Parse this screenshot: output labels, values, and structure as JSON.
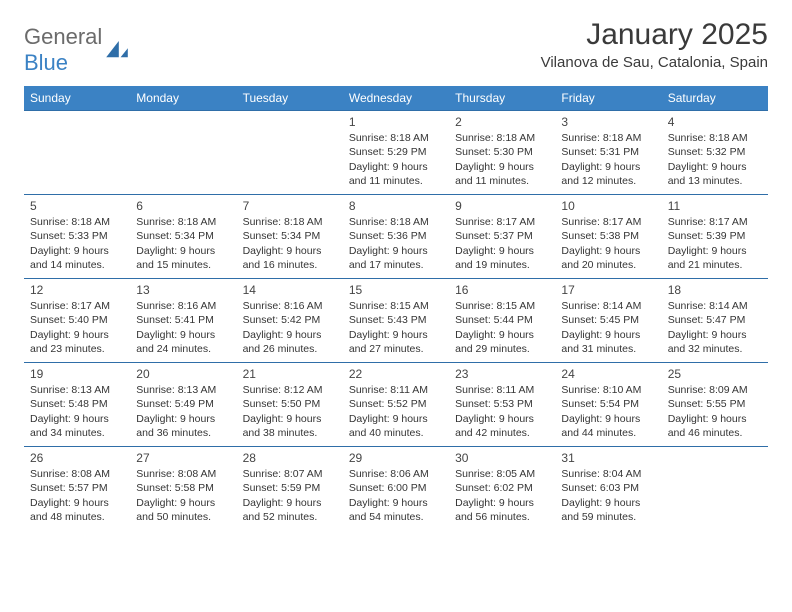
{
  "brand": {
    "word1": "General",
    "word2": "Blue"
  },
  "title": "January 2025",
  "subtitle": "Vilanova de Sau, Catalonia, Spain",
  "colors": {
    "header_bg": "#3b82c4",
    "header_text": "#ffffff",
    "row_border": "#2f6ea8",
    "text": "#353535",
    "title": "#3a3a3a"
  },
  "day_headers": [
    "Sunday",
    "Monday",
    "Tuesday",
    "Wednesday",
    "Thursday",
    "Friday",
    "Saturday"
  ],
  "cells": [
    {
      "row": 0,
      "col": 0
    },
    {
      "row": 0,
      "col": 1
    },
    {
      "row": 0,
      "col": 2
    },
    {
      "row": 0,
      "col": 3,
      "num": "1",
      "sunrise": "Sunrise: 8:18 AM",
      "sunset": "Sunset: 5:29 PM",
      "day1": "Daylight: 9 hours",
      "day2": "and 11 minutes."
    },
    {
      "row": 0,
      "col": 4,
      "num": "2",
      "sunrise": "Sunrise: 8:18 AM",
      "sunset": "Sunset: 5:30 PM",
      "day1": "Daylight: 9 hours",
      "day2": "and 11 minutes."
    },
    {
      "row": 0,
      "col": 5,
      "num": "3",
      "sunrise": "Sunrise: 8:18 AM",
      "sunset": "Sunset: 5:31 PM",
      "day1": "Daylight: 9 hours",
      "day2": "and 12 minutes."
    },
    {
      "row": 0,
      "col": 6,
      "num": "4",
      "sunrise": "Sunrise: 8:18 AM",
      "sunset": "Sunset: 5:32 PM",
      "day1": "Daylight: 9 hours",
      "day2": "and 13 minutes."
    },
    {
      "row": 1,
      "col": 0,
      "num": "5",
      "sunrise": "Sunrise: 8:18 AM",
      "sunset": "Sunset: 5:33 PM",
      "day1": "Daylight: 9 hours",
      "day2": "and 14 minutes."
    },
    {
      "row": 1,
      "col": 1,
      "num": "6",
      "sunrise": "Sunrise: 8:18 AM",
      "sunset": "Sunset: 5:34 PM",
      "day1": "Daylight: 9 hours",
      "day2": "and 15 minutes."
    },
    {
      "row": 1,
      "col": 2,
      "num": "7",
      "sunrise": "Sunrise: 8:18 AM",
      "sunset": "Sunset: 5:34 PM",
      "day1": "Daylight: 9 hours",
      "day2": "and 16 minutes."
    },
    {
      "row": 1,
      "col": 3,
      "num": "8",
      "sunrise": "Sunrise: 8:18 AM",
      "sunset": "Sunset: 5:36 PM",
      "day1": "Daylight: 9 hours",
      "day2": "and 17 minutes."
    },
    {
      "row": 1,
      "col": 4,
      "num": "9",
      "sunrise": "Sunrise: 8:17 AM",
      "sunset": "Sunset: 5:37 PM",
      "day1": "Daylight: 9 hours",
      "day2": "and 19 minutes."
    },
    {
      "row": 1,
      "col": 5,
      "num": "10",
      "sunrise": "Sunrise: 8:17 AM",
      "sunset": "Sunset: 5:38 PM",
      "day1": "Daylight: 9 hours",
      "day2": "and 20 minutes."
    },
    {
      "row": 1,
      "col": 6,
      "num": "11",
      "sunrise": "Sunrise: 8:17 AM",
      "sunset": "Sunset: 5:39 PM",
      "day1": "Daylight: 9 hours",
      "day2": "and 21 minutes."
    },
    {
      "row": 2,
      "col": 0,
      "num": "12",
      "sunrise": "Sunrise: 8:17 AM",
      "sunset": "Sunset: 5:40 PM",
      "day1": "Daylight: 9 hours",
      "day2": "and 23 minutes."
    },
    {
      "row": 2,
      "col": 1,
      "num": "13",
      "sunrise": "Sunrise: 8:16 AM",
      "sunset": "Sunset: 5:41 PM",
      "day1": "Daylight: 9 hours",
      "day2": "and 24 minutes."
    },
    {
      "row": 2,
      "col": 2,
      "num": "14",
      "sunrise": "Sunrise: 8:16 AM",
      "sunset": "Sunset: 5:42 PM",
      "day1": "Daylight: 9 hours",
      "day2": "and 26 minutes."
    },
    {
      "row": 2,
      "col": 3,
      "num": "15",
      "sunrise": "Sunrise: 8:15 AM",
      "sunset": "Sunset: 5:43 PM",
      "day1": "Daylight: 9 hours",
      "day2": "and 27 minutes."
    },
    {
      "row": 2,
      "col": 4,
      "num": "16",
      "sunrise": "Sunrise: 8:15 AM",
      "sunset": "Sunset: 5:44 PM",
      "day1": "Daylight: 9 hours",
      "day2": "and 29 minutes."
    },
    {
      "row": 2,
      "col": 5,
      "num": "17",
      "sunrise": "Sunrise: 8:14 AM",
      "sunset": "Sunset: 5:45 PM",
      "day1": "Daylight: 9 hours",
      "day2": "and 31 minutes."
    },
    {
      "row": 2,
      "col": 6,
      "num": "18",
      "sunrise": "Sunrise: 8:14 AM",
      "sunset": "Sunset: 5:47 PM",
      "day1": "Daylight: 9 hours",
      "day2": "and 32 minutes."
    },
    {
      "row": 3,
      "col": 0,
      "num": "19",
      "sunrise": "Sunrise: 8:13 AM",
      "sunset": "Sunset: 5:48 PM",
      "day1": "Daylight: 9 hours",
      "day2": "and 34 minutes."
    },
    {
      "row": 3,
      "col": 1,
      "num": "20",
      "sunrise": "Sunrise: 8:13 AM",
      "sunset": "Sunset: 5:49 PM",
      "day1": "Daylight: 9 hours",
      "day2": "and 36 minutes."
    },
    {
      "row": 3,
      "col": 2,
      "num": "21",
      "sunrise": "Sunrise: 8:12 AM",
      "sunset": "Sunset: 5:50 PM",
      "day1": "Daylight: 9 hours",
      "day2": "and 38 minutes."
    },
    {
      "row": 3,
      "col": 3,
      "num": "22",
      "sunrise": "Sunrise: 8:11 AM",
      "sunset": "Sunset: 5:52 PM",
      "day1": "Daylight: 9 hours",
      "day2": "and 40 minutes."
    },
    {
      "row": 3,
      "col": 4,
      "num": "23",
      "sunrise": "Sunrise: 8:11 AM",
      "sunset": "Sunset: 5:53 PM",
      "day1": "Daylight: 9 hours",
      "day2": "and 42 minutes."
    },
    {
      "row": 3,
      "col": 5,
      "num": "24",
      "sunrise": "Sunrise: 8:10 AM",
      "sunset": "Sunset: 5:54 PM",
      "day1": "Daylight: 9 hours",
      "day2": "and 44 minutes."
    },
    {
      "row": 3,
      "col": 6,
      "num": "25",
      "sunrise": "Sunrise: 8:09 AM",
      "sunset": "Sunset: 5:55 PM",
      "day1": "Daylight: 9 hours",
      "day2": "and 46 minutes."
    },
    {
      "row": 4,
      "col": 0,
      "num": "26",
      "sunrise": "Sunrise: 8:08 AM",
      "sunset": "Sunset: 5:57 PM",
      "day1": "Daylight: 9 hours",
      "day2": "and 48 minutes."
    },
    {
      "row": 4,
      "col": 1,
      "num": "27",
      "sunrise": "Sunrise: 8:08 AM",
      "sunset": "Sunset: 5:58 PM",
      "day1": "Daylight: 9 hours",
      "day2": "and 50 minutes."
    },
    {
      "row": 4,
      "col": 2,
      "num": "28",
      "sunrise": "Sunrise: 8:07 AM",
      "sunset": "Sunset: 5:59 PM",
      "day1": "Daylight: 9 hours",
      "day2": "and 52 minutes."
    },
    {
      "row": 4,
      "col": 3,
      "num": "29",
      "sunrise": "Sunrise: 8:06 AM",
      "sunset": "Sunset: 6:00 PM",
      "day1": "Daylight: 9 hours",
      "day2": "and 54 minutes."
    },
    {
      "row": 4,
      "col": 4,
      "num": "30",
      "sunrise": "Sunrise: 8:05 AM",
      "sunset": "Sunset: 6:02 PM",
      "day1": "Daylight: 9 hours",
      "day2": "and 56 minutes."
    },
    {
      "row": 4,
      "col": 5,
      "num": "31",
      "sunrise": "Sunrise: 8:04 AM",
      "sunset": "Sunset: 6:03 PM",
      "day1": "Daylight: 9 hours",
      "day2": "and 59 minutes."
    },
    {
      "row": 4,
      "col": 6
    }
  ]
}
